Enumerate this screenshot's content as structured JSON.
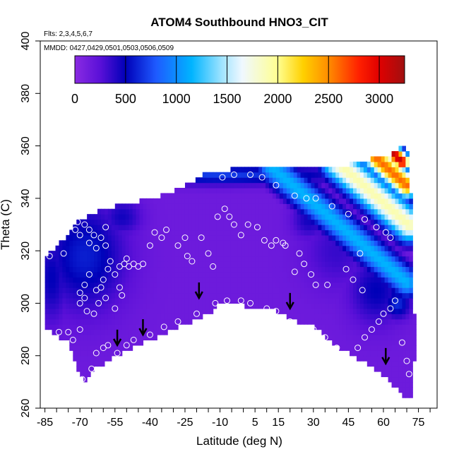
{
  "chart_data": {
    "type": "heatmap",
    "title": "ATOM4 Southbound HNO3_CIT",
    "annotations": [
      "Flts: 2,3,4,5,6,7",
      "MMDD: 0427,0429,0501,0503,0506,0509"
    ],
    "xlabel": "Latitude (deg N)",
    "ylabel": "Theta (C)",
    "xlim": [
      -87,
      83
    ],
    "ylim": [
      260,
      400
    ],
    "x_ticks": [
      -85,
      -70,
      -55,
      -40,
      -25,
      -10,
      5,
      15,
      30,
      45,
      60,
      75
    ],
    "x_minor_ticks": [
      -85,
      -80,
      -75,
      -70,
      -65,
      -60,
      -55,
      -50,
      -45,
      -40,
      -35,
      -30,
      -25,
      -20,
      -15,
      -10,
      -5,
      0,
      5,
      10,
      15,
      20,
      25,
      30,
      35,
      40,
      45,
      50,
      55,
      60,
      65,
      70,
      75,
      80
    ],
    "y_ticks": [
      260,
      280,
      300,
      320,
      340,
      360,
      380,
      400
    ],
    "colorbar": {
      "min": 0,
      "max": 3250,
      "ticks": [
        0,
        500,
        1000,
        1500,
        2000,
        2500,
        3000
      ],
      "stops": [
        {
          "v": 0,
          "c": "#8a2be2"
        },
        {
          "v": 250,
          "c": "#5a10d8"
        },
        {
          "v": 500,
          "c": "#0000b8"
        },
        {
          "v": 800,
          "c": "#1e5aff"
        },
        {
          "v": 1150,
          "c": "#00b4ff"
        },
        {
          "v": 1450,
          "c": "#a0e4ff"
        },
        {
          "v": 1650,
          "c": "#f0f8ff"
        },
        {
          "v": 2000,
          "c": "#ffff90"
        },
        {
          "v": 2250,
          "c": "#ffd000"
        },
        {
          "v": 2500,
          "c": "#ff8c00"
        },
        {
          "v": 2800,
          "c": "#ff2000"
        },
        {
          "v": 3000,
          "c": "#e00000"
        },
        {
          "v": 3250,
          "c": "#a01010"
        }
      ]
    },
    "domain_top": [
      [
        -85,
        318
      ],
      [
        -80,
        321
      ],
      [
        -75,
        327
      ],
      [
        -70,
        332
      ],
      [
        -60,
        336
      ],
      [
        -50,
        338
      ],
      [
        -40,
        340
      ],
      [
        -32,
        342
      ],
      [
        -25,
        345
      ],
      [
        -15,
        350
      ],
      [
        -5,
        351
      ],
      [
        5,
        351
      ],
      [
        15,
        351
      ],
      [
        25,
        352
      ],
      [
        35,
        352
      ],
      [
        45,
        353
      ],
      [
        55,
        355
      ],
      [
        62,
        356
      ],
      [
        66,
        359
      ],
      [
        69,
        360
      ]
    ],
    "domain_bottom": [
      [
        -85,
        291
      ],
      [
        -75,
        285
      ],
      [
        -70,
        273
      ],
      [
        -67,
        270
      ],
      [
        -64,
        275
      ],
      [
        -58,
        278
      ],
      [
        -52,
        281
      ],
      [
        -45,
        284
      ],
      [
        -35,
        288
      ],
      [
        -25,
        292
      ],
      [
        -15,
        296
      ],
      [
        -10,
        300
      ],
      [
        0,
        299
      ],
      [
        10,
        299
      ],
      [
        20,
        294
      ],
      [
        30,
        291
      ],
      [
        40,
        284
      ],
      [
        47,
        280
      ],
      [
        55,
        276
      ],
      [
        62,
        271
      ],
      [
        68,
        265
      ],
      [
        72,
        264
      ]
    ],
    "domain_right": [
      [
        70,
        360
      ],
      [
        72,
        340
      ],
      [
        73,
        320
      ],
      [
        73,
        300
      ],
      [
        74,
        285
      ],
      [
        73,
        275
      ],
      [
        72,
        264
      ]
    ],
    "background_value": 150,
    "features": [
      {
        "cx": -68,
        "cy": 318,
        "sx": 12,
        "sy": 14,
        "v": 600
      },
      {
        "cx": -82,
        "cy": 310,
        "sx": 5,
        "sy": 12,
        "v": 500
      },
      {
        "cx": -52,
        "cy": 333,
        "sx": 6,
        "sy": 5,
        "v": 450
      },
      {
        "cx": -10,
        "cy": 349,
        "sx": 40,
        "sy": 2.5,
        "v": 700
      },
      {
        "cx": 28,
        "cy": 332,
        "sx": 5,
        "sy": 5,
        "v": 450
      },
      {
        "cx": 40,
        "cy": 320,
        "sx": 10,
        "sy": 10,
        "v": 350
      },
      {
        "cx": 57,
        "cy": 305,
        "sx": 8,
        "sy": 9,
        "v": 500
      },
      {
        "cx": 66,
        "cy": 300,
        "sx": 4,
        "sy": 4,
        "v": 650
      }
    ],
    "ridges": [
      {
        "x0": 12,
        "y0": 352,
        "x1": 70,
        "y1": 308,
        "width": 4.5,
        "v": 1150
      },
      {
        "x0": 40,
        "y0": 354,
        "x1": 71,
        "y1": 330,
        "width": 5,
        "v": 1900
      },
      {
        "x0": 55,
        "y0": 357,
        "x1": 70,
        "y1": 345,
        "width": 3.5,
        "v": 2600
      },
      {
        "x0": 62,
        "y0": 359,
        "x1": 68,
        "y1": 354,
        "width": 2.5,
        "v": 3100
      }
    ],
    "samples": [
      [
        -83,
        318
      ],
      [
        -77,
        319
      ],
      [
        -72,
        328
      ],
      [
        -71,
        331
      ],
      [
        -70,
        326
      ],
      [
        -68,
        330
      ],
      [
        -66,
        328
      ],
      [
        -66,
        323
      ],
      [
        -64,
        326
      ],
      [
        -63,
        321
      ],
      [
        -61,
        325
      ],
      [
        -59,
        329
      ],
      [
        -59,
        322
      ],
      [
        -57,
        316
      ],
      [
        -55,
        311
      ],
      [
        -53,
        314
      ],
      [
        -51,
        315
      ],
      [
        -50,
        317
      ],
      [
        -49,
        314
      ],
      [
        -47,
        315
      ],
      [
        -45,
        314
      ],
      [
        -43,
        315
      ],
      [
        -40,
        322
      ],
      [
        -38,
        327
      ],
      [
        -35,
        325
      ],
      [
        -33,
        328
      ],
      [
        -28,
        322
      ],
      [
        -25,
        325
      ],
      [
        -24,
        318
      ],
      [
        -22,
        316
      ],
      [
        -18,
        325
      ],
      [
        -15,
        319
      ],
      [
        -13,
        314
      ],
      [
        -11,
        333
      ],
      [
        -8,
        336
      ],
      [
        -6,
        333
      ],
      [
        -1,
        326
      ],
      [
        -4,
        330
      ],
      [
        2,
        330
      ],
      [
        6,
        329
      ],
      [
        9,
        324
      ],
      [
        12,
        322
      ],
      [
        14,
        324
      ],
      [
        17,
        323
      ],
      [
        18,
        322
      ],
      [
        -59,
        302
      ],
      [
        -61,
        306
      ],
      [
        -62,
        300
      ],
      [
        -64,
        296
      ],
      [
        -67,
        297
      ],
      [
        -68,
        302
      ],
      [
        -70,
        300
      ],
      [
        -70,
        304
      ],
      [
        -68,
        307
      ],
      [
        -66,
        311
      ],
      [
        -63,
        305
      ],
      [
        -60,
        309
      ],
      [
        -58,
        313
      ],
      [
        -53,
        306
      ],
      [
        -52,
        303
      ],
      [
        -55,
        298
      ],
      [
        -70,
        290
      ],
      [
        -75,
        289
      ],
      [
        -79,
        289
      ],
      [
        -73,
        286
      ],
      [
        -63,
        281
      ],
      [
        -60,
        283
      ],
      [
        -58,
        284
      ],
      [
        -54,
        281
      ],
      [
        -50,
        284
      ],
      [
        -47,
        286
      ],
      [
        -65,
        275
      ],
      [
        -69,
        271
      ],
      [
        -40,
        288
      ],
      [
        -34,
        291
      ],
      [
        -28,
        293
      ],
      [
        -20,
        296
      ],
      [
        -12,
        300
      ],
      [
        -7,
        301
      ],
      [
        -1,
        301
      ],
      [
        3,
        300
      ],
      [
        10,
        298
      ],
      [
        14,
        297
      ],
      [
        20,
        293
      ],
      [
        24,
        290
      ],
      [
        30,
        290
      ],
      [
        35,
        287
      ],
      [
        40,
        283
      ],
      [
        44,
        280
      ],
      [
        49,
        283
      ],
      [
        52,
        287
      ],
      [
        55,
        290
      ],
      [
        58,
        293
      ],
      [
        60,
        296
      ],
      [
        63,
        298
      ],
      [
        65,
        301
      ],
      [
        68,
        285
      ],
      [
        70,
        278
      ],
      [
        71,
        273
      ],
      [
        -9,
        348
      ],
      [
        -4,
        349
      ],
      [
        3,
        349
      ],
      [
        8,
        348
      ],
      [
        14,
        345
      ],
      [
        22,
        341
      ],
      [
        27,
        340
      ],
      [
        31,
        340
      ],
      [
        38,
        337
      ],
      [
        45,
        334
      ],
      [
        52,
        332
      ],
      [
        57,
        329
      ],
      [
        61,
        327
      ],
      [
        63,
        325
      ],
      [
        50,
        319
      ],
      [
        44,
        313
      ],
      [
        36,
        307
      ],
      [
        31,
        307
      ],
      [
        29,
        311
      ],
      [
        26,
        315
      ],
      [
        22,
        312
      ],
      [
        47,
        309
      ],
      [
        51,
        305
      ],
      [
        24,
        319
      ]
    ],
    "arrows": [
      [
        -54,
        284
      ],
      [
        -43,
        288
      ],
      [
        -19,
        302
      ],
      [
        20,
        298
      ],
      [
        61,
        277
      ]
    ]
  }
}
